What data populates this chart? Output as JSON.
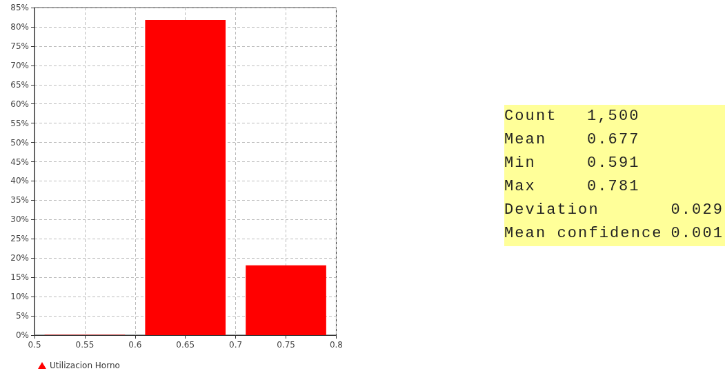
{
  "chart_data": [
    {
      "type": "histogram",
      "bins": [
        0.5,
        0.6,
        0.7,
        0.8
      ],
      "series": [
        {
          "name": "Utilizacion Horno",
          "color": "#ff0000",
          "values": [
            0.1,
            81.8,
            18.1
          ]
        }
      ],
      "xlim": [
        0.5,
        0.8
      ],
      "xticks": [
        0.5,
        0.55,
        0.6,
        0.65,
        0.7,
        0.75,
        0.8
      ],
      "ylim": [
        0,
        85
      ],
      "yticks": [
        {
          "value": 0,
          "label": "0%"
        },
        {
          "value": 5,
          "label": "5%"
        },
        {
          "value": 10,
          "label": "10%"
        },
        {
          "value": 15,
          "label": "15%"
        },
        {
          "value": 20,
          "label": "20%"
        },
        {
          "value": 25,
          "label": "25%"
        },
        {
          "value": 30,
          "label": "30%"
        },
        {
          "value": 35,
          "label": "35%"
        },
        {
          "value": 40,
          "label": "40%"
        },
        {
          "value": 45,
          "label": "45%"
        },
        {
          "value": 50,
          "label": "50%"
        },
        {
          "value": 55,
          "label": "55%"
        },
        {
          "value": 60,
          "label": "60%"
        },
        {
          "value": 65,
          "label": "65%"
        },
        {
          "value": 70,
          "label": "70%"
        },
        {
          "value": 75,
          "label": "75%"
        },
        {
          "value": 80,
          "label": "80%"
        },
        {
          "value": 85,
          "label": "85%"
        }
      ],
      "grid": true,
      "legend": "bottom left",
      "marker": "triangle"
    },
    {
      "type": "other",
      "annotations": [
        "Count",
        "1,500",
        "Mean",
        "0.677",
        "Min",
        "0.591",
        "Max",
        "0.781",
        "Deviation",
        "0.029",
        "Mean confidence",
        "0.001"
      ]
    }
  ]
}
